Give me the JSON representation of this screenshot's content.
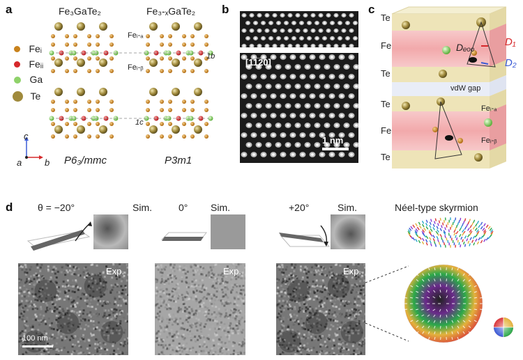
{
  "panels": {
    "a": "a",
    "b": "b",
    "c": "c",
    "d": "d"
  },
  "panel_a": {
    "title_left": "Fe₃GaTe₂",
    "title_right": "Fe₃-ₓGaTe₂",
    "legend": [
      {
        "label": "Feᵢ",
        "color": "#c8821c"
      },
      {
        "label": "Feᵢᵢ",
        "color": "#d6282b"
      },
      {
        "label": "Ga",
        "color": "#8fd26a"
      },
      {
        "label": "Te",
        "color": "#a08a3c"
      }
    ],
    "site_labels": {
      "fe_ia": "Feᵢ-ₐ",
      "fe_ib": "Feᵢ-ᵦ"
    },
    "arrow_labels": {
      "one_b": "1b",
      "one_c": "1c"
    },
    "axes": {
      "c": "c",
      "a": "a",
      "b": "b"
    },
    "space_group_left": "P6₃/mmc",
    "space_group_right": "P3m1"
  },
  "panel_b": {
    "zone_axis": "[11̅2̅0]",
    "scale_bar": "1 nm"
  },
  "panel_c": {
    "layers": [
      "Te",
      "Fe",
      "Te",
      "Te",
      "Fe",
      "Te"
    ],
    "gap": "vdW gap",
    "d_eff": "Dₑₒₒ",
    "d1": "D₁",
    "d2": "D₂",
    "fe_ia": "Feᵢ-ₐ",
    "fe_ib": "Feᵢ-ᵦ"
  },
  "panel_d": {
    "tilts": [
      {
        "angle": "θ = −20°",
        "sim": "Sim.",
        "exp": "Exp."
      },
      {
        "angle": "0°",
        "sim": "Sim.",
        "exp": "Exp."
      },
      {
        "angle": "+20°",
        "sim": "Sim.",
        "exp": "Exp."
      }
    ],
    "skyrmion_title": "Néel-type skyrmion",
    "scale_bar": "100 nm"
  },
  "colors": {
    "fe_i": "#c8821c",
    "fe_ii": "#d6282b",
    "ga": "#8fd26a",
    "te": "#a08a3c",
    "fe_layer": "#f2b6b8",
    "te_layer": "#eee4b8",
    "gap": "#e8ecf6"
  }
}
